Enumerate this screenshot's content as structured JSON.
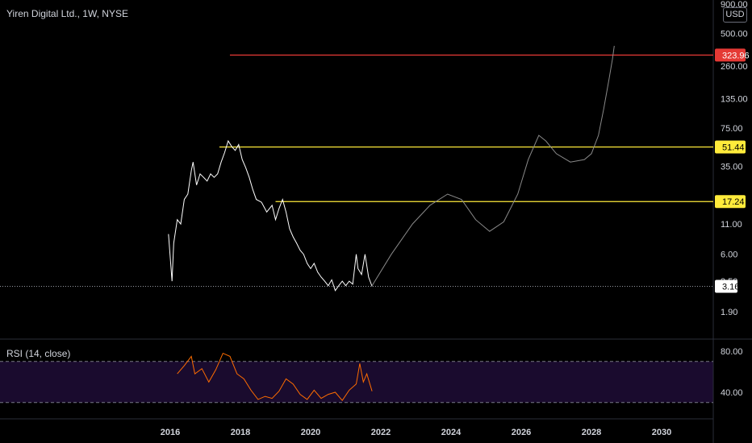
{
  "header": {
    "symbol_title": "Yiren Digital Ltd., 1W, NYSE",
    "currency": "USD"
  },
  "rsi": {
    "label": "RSI (14, close)",
    "ticks": [
      "80.00",
      "40.00"
    ],
    "upper": 70,
    "lower": 30
  },
  "colors": {
    "price": "#ffffff",
    "projection": "#8a8a8a",
    "red_line": "#e53935",
    "yellow_line": "#ffeb3b",
    "rsi_line": "#ff6d00",
    "rsi_band": "#1a0b2e"
  },
  "chart_data": {
    "type": "line",
    "y_scale": "log",
    "y_tick_labels": [
      "900.00",
      "500.00",
      "260.00",
      "135.00",
      "75.00",
      "35.00",
      "11.00",
      "6.00",
      "3.50",
      "1.90"
    ],
    "y_tick_values": [
      900,
      500,
      260,
      135,
      75,
      35,
      11,
      6,
      3.5,
      1.9
    ],
    "x_tick_labels": [
      "2016",
      "2018",
      "2020",
      "2022",
      "2024",
      "2026",
      "2028",
      "2030"
    ],
    "x_tick_values": [
      2016,
      2018,
      2020,
      2022,
      2024,
      2026,
      2028,
      2030
    ],
    "levels": [
      {
        "label": "323.96",
        "value": 323.96,
        "color": "red_line",
        "from": 2017.7
      },
      {
        "label": "51.44",
        "value": 51.44,
        "color": "yellow_line",
        "from": 2017.4
      },
      {
        "label": "17.24",
        "value": 17.24,
        "color": "yellow_line",
        "from": 2019.0
      }
    ],
    "last_price": {
      "label": "3.16",
      "value": 3.16
    },
    "series": [
      {
        "x": [
          2015.95,
          2016.05,
          2016.1,
          2016.2,
          2016.3,
          2016.4,
          2016.5,
          2016.6,
          2016.65,
          2016.75,
          2016.85,
          2016.95,
          2017.05,
          2017.15,
          2017.25,
          2017.35,
          2017.45,
          2017.55,
          2017.65,
          2017.75,
          2017.85,
          2017.95,
          2018.05,
          2018.15,
          2018.25,
          2018.35,
          2018.45,
          2018.6,
          2018.75,
          2018.9,
          2019.0,
          2019.1,
          2019.2,
          2019.3,
          2019.4,
          2019.5,
          2019.6,
          2019.7,
          2019.8,
          2019.9,
          2020.0,
          2020.1,
          2020.2,
          2020.3,
          2020.4,
          2020.5,
          2020.6,
          2020.7,
          2020.8,
          2020.9,
          2021.0,
          2021.1,
          2021.2,
          2021.3,
          2021.35,
          2021.45,
          2021.55,
          2021.65,
          2021.75
        ],
        "y": [
          9.0,
          3.5,
          7.5,
          12.0,
          11.0,
          18.0,
          20.0,
          32.0,
          38.0,
          24.0,
          30.0,
          28.0,
          26.0,
          30.0,
          28.0,
          30.0,
          38.0,
          46.0,
          58.0,
          52.0,
          48.0,
          54.0,
          40.0,
          34.0,
          28.0,
          22.0,
          18.0,
          17.0,
          14.0,
          16.0,
          12.0,
          15.0,
          18.0,
          14.0,
          10.0,
          8.5,
          7.5,
          6.5,
          6.0,
          5.0,
          4.5,
          5.0,
          4.2,
          3.8,
          3.5,
          3.2,
          3.6,
          2.9,
          3.2,
          3.5,
          3.2,
          3.5,
          3.3,
          6.0,
          4.5,
          4.0,
          6.0,
          3.8,
          3.16
        ]
      },
      {
        "x": [
          2021.75,
          2022.3,
          2022.9,
          2023.4,
          2023.9,
          2024.3,
          2024.7,
          2025.1,
          2025.5,
          2025.9,
          2026.2,
          2026.5,
          2026.7,
          2027.0,
          2027.4,
          2027.8,
          2028.0,
          2028.2,
          2028.35,
          2028.5,
          2028.6,
          2028.65
        ],
        "y": [
          3.2,
          6.0,
          11.0,
          16.0,
          20.0,
          18.0,
          12.0,
          9.5,
          11.5,
          20.0,
          40.0,
          65.0,
          58.0,
          45.0,
          38.0,
          40.0,
          45.0,
          65.0,
          110.0,
          200.0,
          300.0,
          390.0
        ]
      },
      {
        "x": [
          2016.2,
          2016.4,
          2016.6,
          2016.7,
          2016.9,
          2017.1,
          2017.3,
          2017.5,
          2017.7,
          2017.9,
          2018.1,
          2018.3,
          2018.5,
          2018.7,
          2018.9,
          2019.1,
          2019.3,
          2019.5,
          2019.7,
          2019.9,
          2020.1,
          2020.3,
          2020.5,
          2020.7,
          2020.9,
          2021.1,
          2021.3,
          2021.4,
          2021.5,
          2021.6,
          2021.75
        ],
        "y": [
          58,
          66,
          75,
          58,
          63,
          50,
          62,
          78,
          75,
          58,
          53,
          42,
          33,
          36,
          34,
          41,
          53,
          48,
          38,
          33,
          42,
          34,
          38,
          40,
          32,
          42,
          48,
          68,
          50,
          58,
          41
        ]
      }
    ]
  }
}
